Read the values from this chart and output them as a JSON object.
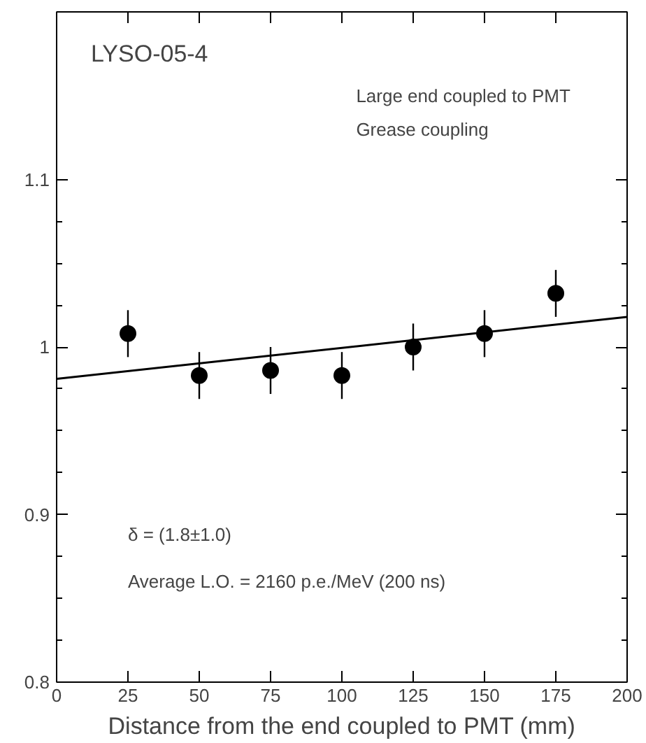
{
  "chart_data": {
    "type": "scatter",
    "title": "LYSO-05-4",
    "xlabel": "Distance from the end coupled to PMT (mm)",
    "annotations": [
      "Large end coupled to PMT",
      "Grease coupling",
      "δ = (1.8±1.0)",
      "Average L.O. = 2160 p.e./MeV (200 ns)"
    ],
    "xlim": [
      0,
      200
    ],
    "ylim": [
      0.8,
      1.2
    ],
    "xticks": [
      0,
      25,
      50,
      75,
      100,
      125,
      150,
      175,
      200
    ],
    "yticks": [
      0.8,
      0.9,
      1,
      1.1
    ],
    "grid": false,
    "series": [
      {
        "marker": "circle",
        "color": "#000000",
        "x": [
          25,
          50,
          75,
          100,
          125,
          150,
          175
        ],
        "values": [
          1.008,
          0.983,
          0.986,
          0.983,
          1.0,
          1.008,
          1.032
        ],
        "errors": [
          0.014,
          0.014,
          0.014,
          0.014,
          0.014,
          0.014,
          0.014
        ]
      },
      {
        "type": "line",
        "color": "#000000",
        "x": [
          0,
          200
        ],
        "values": [
          0.981,
          1.018
        ]
      }
    ]
  }
}
